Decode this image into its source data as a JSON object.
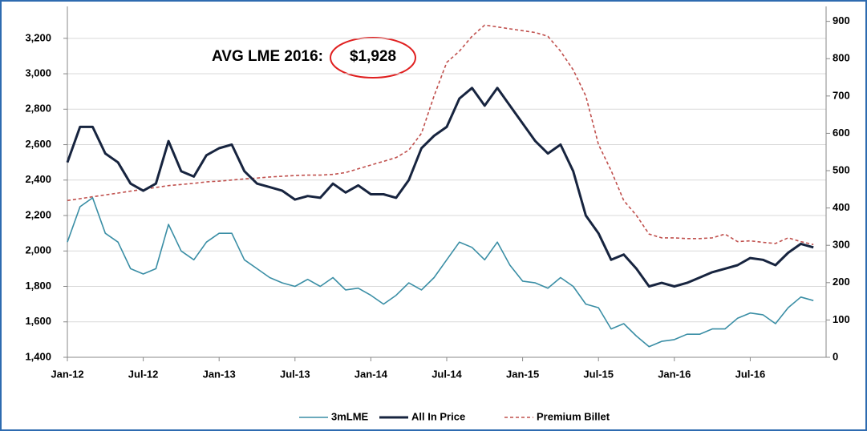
{
  "chart_data": {
    "type": "line",
    "annotation_label": "AVG LME 2016:",
    "annotation_value": "$1,928",
    "categories": [
      "Jan-12",
      null,
      null,
      null,
      null,
      null,
      "Jul-12",
      null,
      null,
      null,
      null,
      null,
      "Jan-13",
      null,
      null,
      null,
      null,
      null,
      "Jul-13",
      null,
      null,
      null,
      null,
      null,
      "Jan-14",
      null,
      null,
      null,
      null,
      null,
      "Jul-14",
      null,
      null,
      null,
      null,
      null,
      "Jan-15",
      null,
      null,
      null,
      null,
      null,
      "Jul-15",
      null,
      null,
      null,
      null,
      null,
      "Jan-16",
      null,
      null,
      null,
      null,
      null,
      "Jul-16",
      null,
      null,
      null,
      null,
      null
    ],
    "series": [
      {
        "name": "3mLME",
        "color": "#3a8ea5",
        "style": "solid",
        "width": 1.6,
        "values": [
          2050,
          2250,
          2300,
          2100,
          2050,
          1900,
          1870,
          1900,
          2150,
          2000,
          1950,
          2050,
          2100,
          2100,
          1950,
          1900,
          1850,
          1820,
          1800,
          1840,
          1800,
          1850,
          1780,
          1790,
          1750,
          1700,
          1750,
          1820,
          1780,
          1850,
          1950,
          2050,
          2020,
          1950,
          2050,
          1920,
          1830,
          1820,
          1790,
          1850,
          1800,
          1700,
          1680,
          1560,
          1590,
          1520,
          1460,
          1490,
          1500,
          1530,
          1530,
          1560,
          1560,
          1620,
          1650,
          1640,
          1590,
          1680,
          1740,
          1720
        ]
      },
      {
        "name": "All In Price",
        "color": "#17243f",
        "style": "solid",
        "width": 3,
        "values": [
          2500,
          2700,
          2700,
          2550,
          2500,
          2380,
          2340,
          2380,
          2620,
          2450,
          2420,
          2540,
          2580,
          2600,
          2450,
          2380,
          2360,
          2340,
          2290,
          2310,
          2300,
          2380,
          2330,
          2370,
          2320,
          2320,
          2300,
          2400,
          2580,
          2650,
          2700,
          2860,
          2920,
          2820,
          2920,
          2820,
          2720,
          2620,
          2550,
          2600,
          2450,
          2200,
          2100,
          1950,
          1980,
          1900,
          1800,
          1820,
          1800,
          1820,
          1850,
          1880,
          1900,
          1920,
          1960,
          1950,
          1920,
          1990,
          2040,
          2020
        ]
      },
      {
        "name": "Premium Billet",
        "color": "#c0504d",
        "style": "dashed",
        "width": 1.6,
        "axis": "y2",
        "values": [
          420,
          425,
          430,
          435,
          440,
          445,
          450,
          455,
          460,
          463,
          466,
          470,
          472,
          475,
          478,
          480,
          483,
          485,
          487,
          488,
          488,
          490,
          495,
          505,
          515,
          525,
          535,
          555,
          600,
          700,
          790,
          820,
          860,
          890,
          885,
          880,
          875,
          870,
          860,
          820,
          770,
          700,
          570,
          500,
          420,
          380,
          330,
          320,
          320,
          318,
          318,
          320,
          330,
          310,
          312,
          308,
          305,
          320,
          310,
          302
        ]
      }
    ],
    "ylim": [
      1400,
      3380
    ],
    "yticks": [
      {
        "value": 1400,
        "label": "1,400"
      },
      {
        "value": 1600,
        "label": "1,600"
      },
      {
        "value": 1800,
        "label": "1,800"
      },
      {
        "value": 2000,
        "label": "2,000"
      },
      {
        "value": 2200,
        "label": "2,200"
      },
      {
        "value": 2400,
        "label": "2,400"
      },
      {
        "value": 2600,
        "label": "2,600"
      },
      {
        "value": 2800,
        "label": "2,800"
      },
      {
        "value": 3000,
        "label": "3,000"
      },
      {
        "value": 3200,
        "label": "3,200"
      }
    ],
    "y2lim": [
      0,
      940
    ],
    "y2ticks": [
      0,
      100,
      200,
      300,
      400,
      500,
      600,
      700,
      800,
      900
    ],
    "grid": true,
    "legend": "bottom"
  }
}
